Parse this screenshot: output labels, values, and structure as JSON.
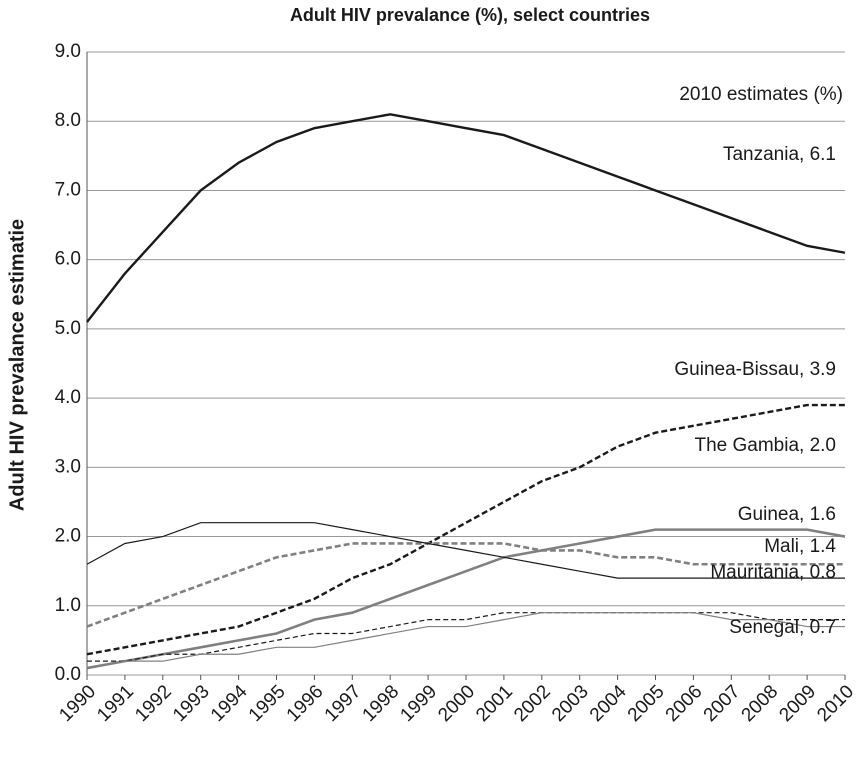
{
  "chart_data": {
    "type": "line",
    "title": "Adult HIV prevalance (%), select countries",
    "y_label": "Adult HIV prevalance estimatie",
    "annotation": "2010 estimates (%)",
    "x": [
      1990,
      1991,
      1992,
      1993,
      1994,
      1995,
      1996,
      1997,
      1998,
      1999,
      2000,
      2001,
      2002,
      2003,
      2004,
      2005,
      2006,
      2007,
      2008,
      2009,
      2010
    ],
    "xlim": [
      1990,
      2010
    ],
    "xticks": [
      1990,
      1991,
      1992,
      1993,
      1994,
      1995,
      1996,
      1997,
      1998,
      1999,
      2000,
      2001,
      2002,
      2003,
      2004,
      2005,
      2006,
      2007,
      2008,
      2009,
      2010
    ],
    "ylim": [
      0,
      9
    ],
    "yticks": [
      {
        "value": 0,
        "label": "0.0"
      },
      {
        "value": 1,
        "label": "1.0"
      },
      {
        "value": 2,
        "label": "2.0"
      },
      {
        "value": 3,
        "label": "3.0"
      },
      {
        "value": 4,
        "label": "4.0"
      },
      {
        "value": 5,
        "label": "5.0"
      },
      {
        "value": 6,
        "label": "6.0"
      },
      {
        "value": 7,
        "label": "7.0"
      },
      {
        "value": 8,
        "label": "8.0"
      },
      {
        "value": 9,
        "label": "9.0"
      }
    ],
    "grid": true,
    "series": [
      {
        "label": "Tanzania, 6.1",
        "color": "#1a1a1a",
        "style": "solid",
        "weight": "bold",
        "values": [
          5.1,
          5.8,
          6.4,
          7.0,
          7.4,
          7.7,
          7.9,
          8.0,
          8.1,
          8.0,
          7.9,
          7.8,
          7.6,
          7.4,
          7.2,
          7.0,
          6.8,
          6.6,
          6.4,
          6.2,
          6.1
        ]
      },
      {
        "label": "Guinea-Bissau, 3.9",
        "color": "#1a1a1a",
        "style": "dashed",
        "weight": "bold",
        "values": [
          0.3,
          0.4,
          0.5,
          0.6,
          0.7,
          0.9,
          1.1,
          1.4,
          1.6,
          1.9,
          2.2,
          2.5,
          2.8,
          3.0,
          3.3,
          3.5,
          3.6,
          3.7,
          3.8,
          3.9,
          3.9
        ]
      },
      {
        "label": "The Gambia, 2.0",
        "color": "#808080",
        "style": "solid",
        "weight": "bold",
        "values": [
          0.1,
          0.2,
          0.3,
          0.4,
          0.5,
          0.6,
          0.8,
          0.9,
          1.1,
          1.3,
          1.5,
          1.7,
          1.8,
          1.9,
          2.0,
          2.1,
          2.1,
          2.1,
          2.1,
          2.1,
          2.0
        ]
      },
      {
        "label": "Guinea, 1.6",
        "color": "#808080",
        "style": "dashed",
        "weight": "bold",
        "values": [
          0.7,
          0.9,
          1.1,
          1.3,
          1.5,
          1.7,
          1.8,
          1.9,
          1.9,
          1.9,
          1.9,
          1.9,
          1.8,
          1.8,
          1.7,
          1.7,
          1.6,
          1.6,
          1.6,
          1.6,
          1.6
        ]
      },
      {
        "label": "Mali, 1.4",
        "color": "#1a1a1a",
        "style": "solid",
        "weight": "thin",
        "values": [
          1.6,
          1.9,
          2.0,
          2.2,
          2.2,
          2.2,
          2.2,
          2.1,
          2.0,
          1.9,
          1.8,
          1.7,
          1.6,
          1.5,
          1.4,
          1.4,
          1.4,
          1.4,
          1.4,
          1.4,
          1.4
        ]
      },
      {
        "label": "Mauritania, 0.8",
        "color": "#1a1a1a",
        "style": "dashed",
        "weight": "thin",
        "values": [
          0.2,
          0.2,
          0.3,
          0.3,
          0.4,
          0.5,
          0.6,
          0.6,
          0.7,
          0.8,
          0.8,
          0.9,
          0.9,
          0.9,
          0.9,
          0.9,
          0.9,
          0.9,
          0.8,
          0.8,
          0.8
        ]
      },
      {
        "label": "Senegal, 0.7",
        "color": "#808080",
        "style": "solid",
        "weight": "thin",
        "values": [
          0.1,
          0.2,
          0.2,
          0.3,
          0.3,
          0.4,
          0.4,
          0.5,
          0.6,
          0.7,
          0.7,
          0.8,
          0.9,
          0.9,
          0.9,
          0.9,
          0.9,
          0.8,
          0.8,
          0.7,
          0.7
        ]
      }
    ]
  }
}
